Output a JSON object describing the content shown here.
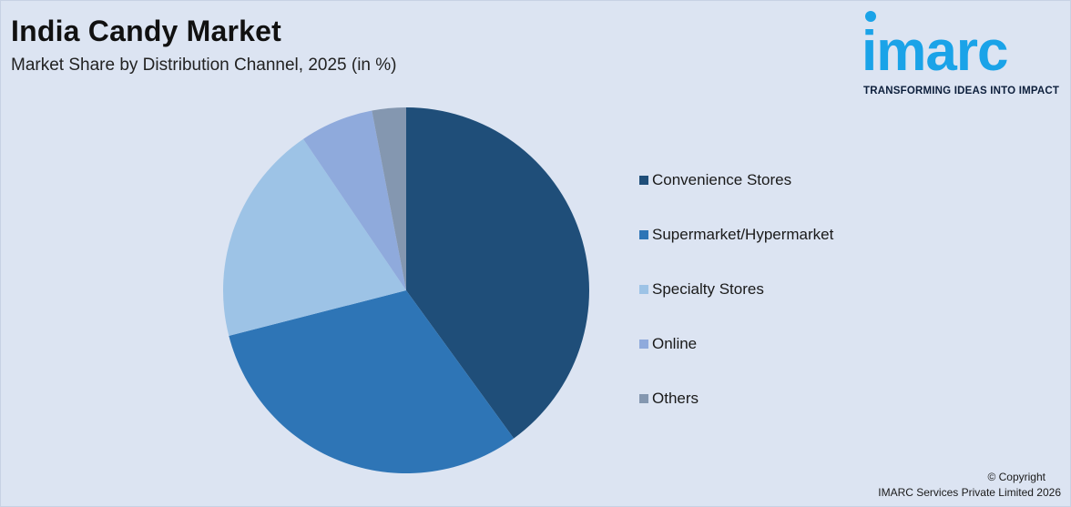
{
  "header": {
    "title": "India Candy Market",
    "subtitle": "Market Share by Distribution Channel, 2025 (in %)"
  },
  "logo": {
    "wordmark": "imarc",
    "tagline": "TRANSFORMING IDEAS INTO IMPACT",
    "color": "#1aa3e8"
  },
  "chart_data": {
    "type": "pie",
    "title": "India Candy Market",
    "subtitle": "Market Share by Distribution Channel, 2025 (in %)",
    "categories": [
      "Convenience Stores",
      "Supermarket/Hypermarket",
      "Specialty Stores",
      "Online",
      "Others"
    ],
    "values": [
      40,
      31,
      19.5,
      6.5,
      3
    ],
    "colors": [
      "#1f4e79",
      "#2e75b6",
      "#9dc3e6",
      "#8faadc",
      "#8497b0"
    ],
    "legend_position": "right"
  },
  "footer": {
    "copyright_line1": "© Copyright",
    "copyright_line2": "IMARC Services Private Limited 2026"
  }
}
